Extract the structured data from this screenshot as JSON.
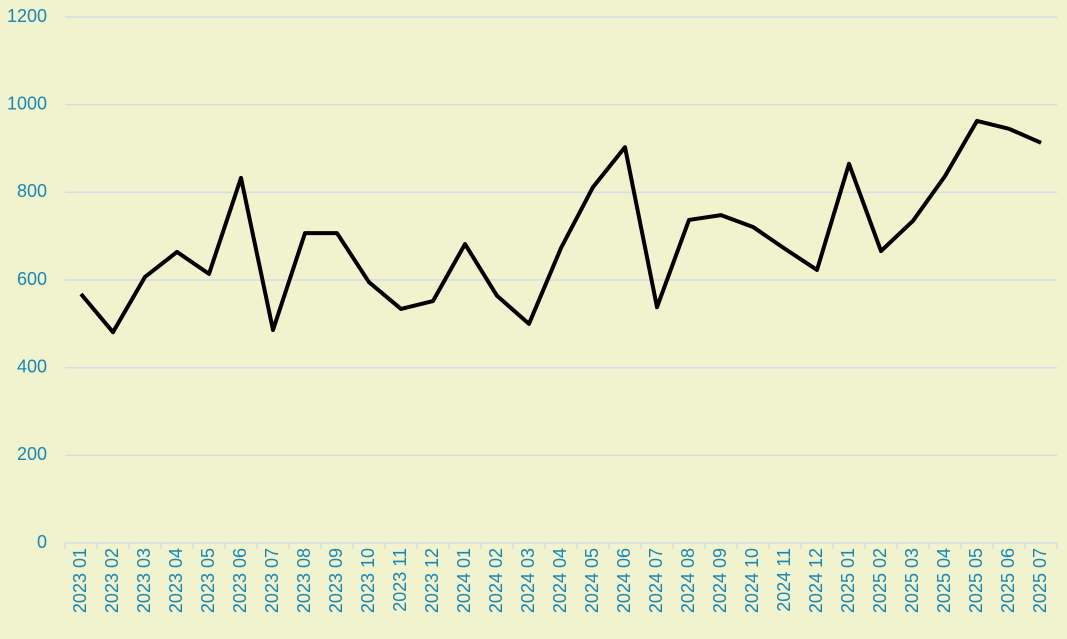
{
  "chart_data": {
    "type": "line",
    "categories": [
      "2023 01",
      "2023 02",
      "2023 03",
      "2023 04",
      "2023 05",
      "2023 06",
      "2023 07",
      "2023 08",
      "2023 09",
      "2023 10",
      "2023 11",
      "2023 12",
      "2024 01",
      "2024 02",
      "2024 03",
      "2024 04",
      "2024 05",
      "2024 06",
      "2024 07",
      "2024 08",
      "2024 09",
      "2024 10",
      "2024 11",
      "2024 12",
      "2025 01",
      "2025 02",
      "2025 03",
      "2025 04",
      "2025 05",
      "2025 06",
      "2025 07"
    ],
    "values": [
      568,
      481,
      607,
      664,
      614,
      833,
      486,
      707,
      707,
      595,
      534,
      552,
      682,
      564,
      500,
      673,
      812,
      903,
      538,
      737,
      748,
      721,
      671,
      623,
      865,
      666,
      735,
      837,
      963,
      945,
      913
    ],
    "color": "#000000",
    "ylim": [
      0,
      1200
    ],
    "yticks": [
      0,
      200,
      400,
      600,
      800,
      1000,
      1200
    ],
    "grid": true
  }
}
